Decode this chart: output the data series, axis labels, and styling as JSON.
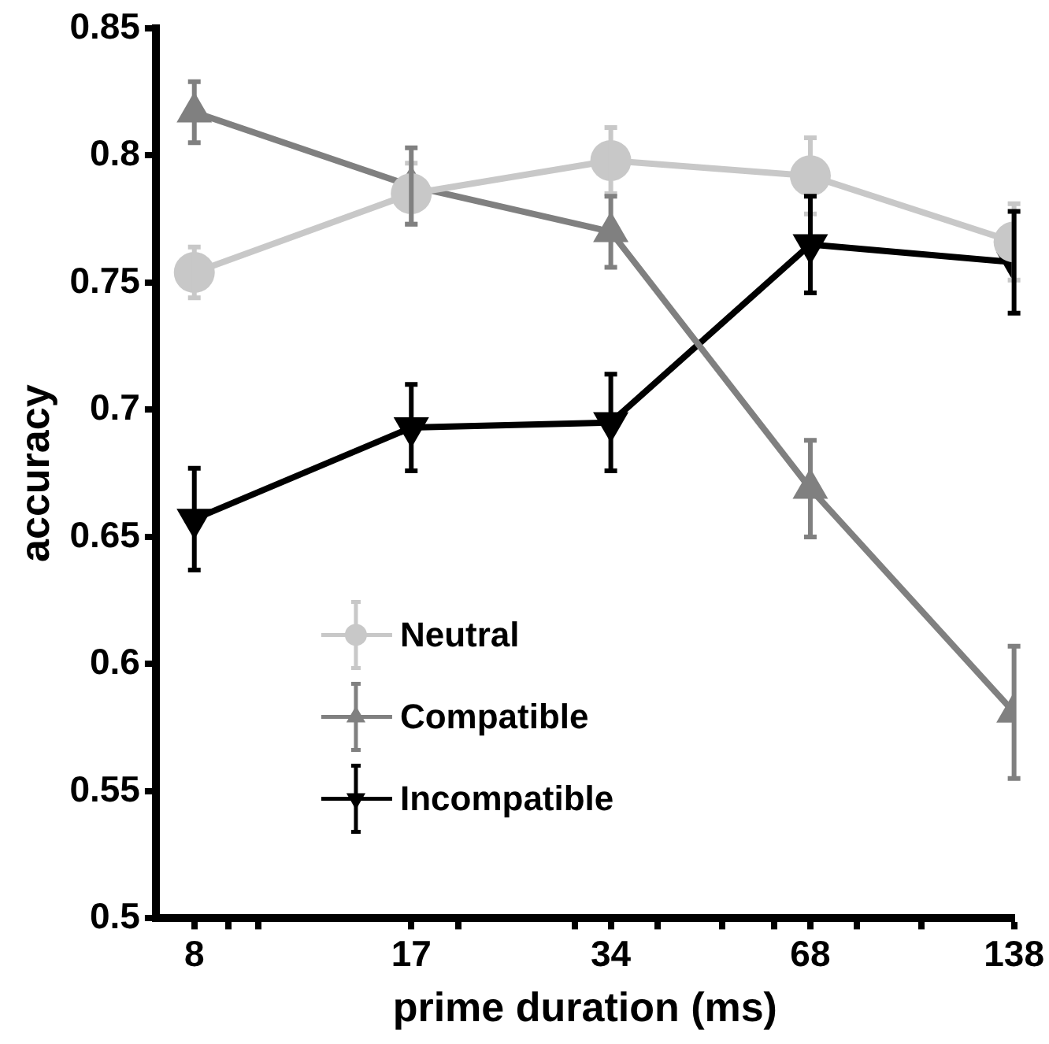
{
  "chart_data": {
    "type": "line",
    "xlabel": "prime duration (ms)",
    "ylabel": "accuracy",
    "x": [
      8,
      17,
      34,
      68,
      138
    ],
    "log": "x",
    "xlim": [
      7,
      138
    ],
    "xticks": [
      8,
      {
        "value": 9,
        "label": null
      },
      {
        "value": 10,
        "label": null
      },
      17,
      {
        "value": 20,
        "label": null
      },
      {
        "value": 30,
        "label": null
      },
      34,
      {
        "value": 40,
        "label": null
      },
      {
        "value": 50,
        "label": null
      },
      {
        "value": 60,
        "label": null
      },
      68,
      {
        "value": 80,
        "label": null
      },
      {
        "value": 100,
        "label": null
      },
      138
    ],
    "ylim": [
      0.5,
      0.85
    ],
    "yticks": [
      0.5,
      0.55,
      0.6,
      0.65,
      0.7,
      0.75,
      0.8,
      0.85
    ],
    "grid": false,
    "legend": "bottom left",
    "line_style": "solid",
    "series": [
      {
        "name": "Neutral",
        "color": "#c8c8c8",
        "marker": "circle",
        "values": [
          0.754,
          0.785,
          0.798,
          0.792,
          0.766
        ],
        "errors": [
          0.01,
          0.012,
          0.013,
          0.015,
          0.015
        ]
      },
      {
        "name": "Compatible",
        "color": "#808080",
        "marker": "triangle",
        "values": [
          0.817,
          0.788,
          0.77,
          0.669,
          0.581
        ],
        "errors": [
          0.012,
          0.015,
          0.014,
          0.019,
          0.026
        ]
      },
      {
        "name": "Incompatible",
        "color": "#000000",
        "marker": "triangle_down",
        "values": [
          0.657,
          0.693,
          0.695,
          0.765,
          0.758
        ],
        "errors": [
          0.02,
          0.017,
          0.019,
          0.019,
          0.02
        ]
      }
    ]
  }
}
